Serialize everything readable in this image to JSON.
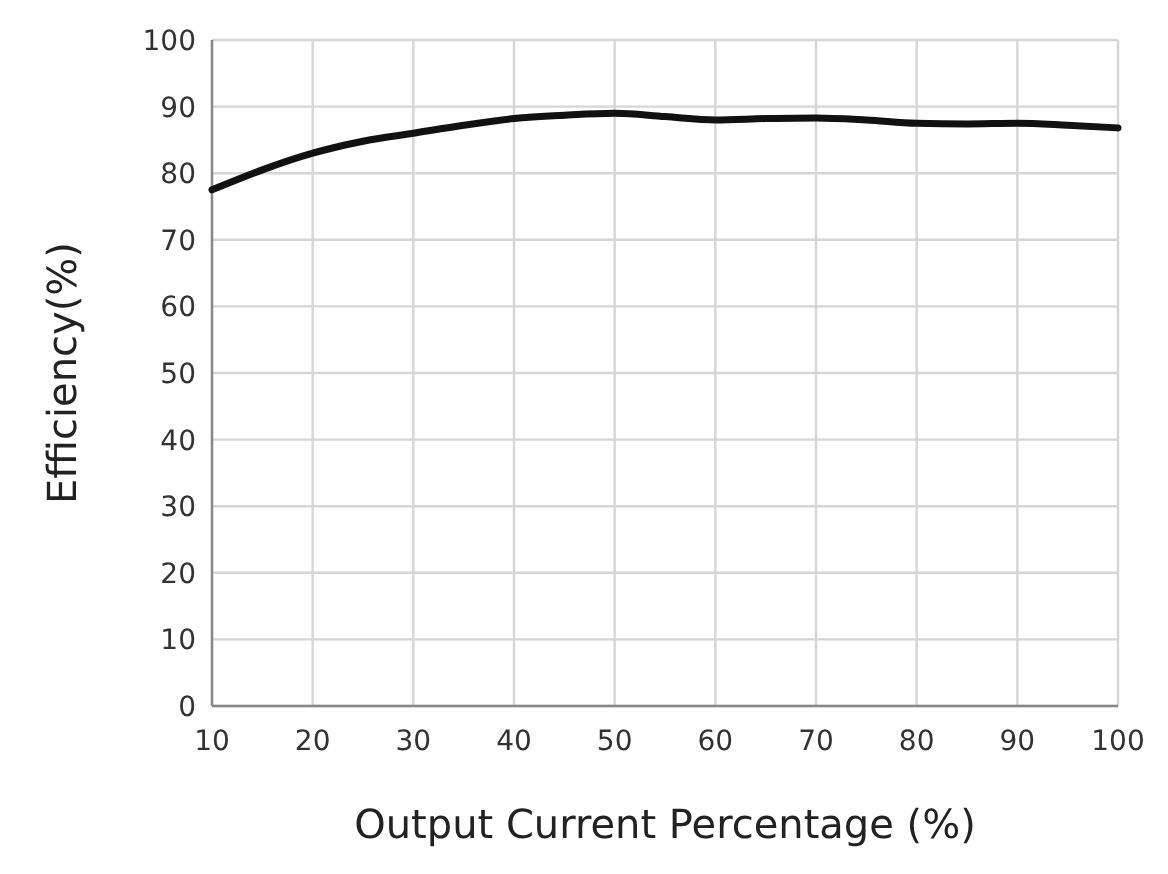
{
  "chart_data": {
    "type": "line",
    "xlabel": "Output Current Percentage (%)",
    "ylabel": "Efficiency(%)",
    "x": [
      10,
      15,
      20,
      25,
      30,
      35,
      40,
      45,
      50,
      55,
      60,
      65,
      70,
      75,
      80,
      85,
      90,
      95,
      100
    ],
    "series": [
      {
        "color": "#111111",
        "values": [
          77.5,
          80.5,
          83,
          84.8,
          86,
          87.2,
          88.2,
          88.7,
          89,
          88.5,
          88,
          88.2,
          88.3,
          88,
          87.5,
          87.4,
          87.5,
          87.2,
          86.8
        ]
      }
    ],
    "xlim": [
      10,
      100
    ],
    "xticks": [
      10,
      20,
      30,
      40,
      50,
      60,
      70,
      80,
      90,
      100
    ],
    "ylim": [
      0,
      100
    ],
    "yticks": [
      0,
      10,
      20,
      30,
      40,
      50,
      60,
      70,
      80,
      90,
      100
    ],
    "grid": true,
    "marker": "none",
    "line_style": "solid"
  }
}
